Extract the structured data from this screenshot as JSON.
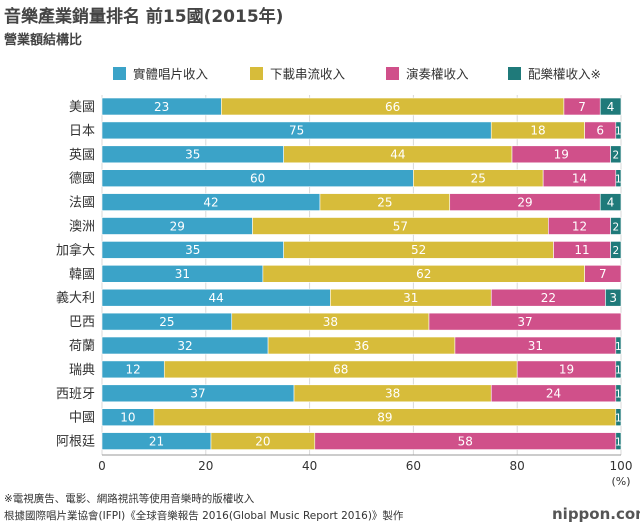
{
  "chart_data": {
    "type": "bar",
    "orientation": "horizontal",
    "stacked": true,
    "title": "音樂產業銷量排名 前15國(2015年)",
    "subtitle": "營業額結構比",
    "categories": [
      "美國",
      "日本",
      "英國",
      "德國",
      "法國",
      "澳洲",
      "加拿大",
      "韓國",
      "義大利",
      "巴西",
      "荷蘭",
      "瑞典",
      "西班牙",
      "中國",
      "阿根廷"
    ],
    "series": [
      {
        "name": "實體唱片收入",
        "color": "#3ba3c8",
        "values": [
          23,
          75,
          35,
          60,
          42,
          29,
          35,
          31,
          44,
          25,
          32,
          12,
          37,
          10,
          21
        ]
      },
      {
        "name": "下載串流收入",
        "color": "#d7bc3a",
        "values": [
          66,
          18,
          44,
          25,
          25,
          57,
          52,
          62,
          31,
          38,
          36,
          68,
          38,
          89,
          20
        ]
      },
      {
        "name": "演奏權收入",
        "color": "#d0508a",
        "values": [
          7,
          6,
          19,
          14,
          29,
          12,
          11,
          7,
          22,
          37,
          31,
          19,
          24,
          0,
          58
        ]
      },
      {
        "name": "配樂權收入※",
        "color": "#1f7a7a",
        "values": [
          4,
          1,
          2,
          1,
          4,
          2,
          2,
          0,
          3,
          0,
          1,
          1,
          1,
          1,
          1
        ]
      }
    ],
    "xlim": [
      0,
      100
    ],
    "xticks": [
      0,
      20,
      40,
      60,
      80,
      100
    ],
    "xlabel": "(%)",
    "legend_position": "top"
  },
  "footnotes": [
    "※電視廣告、電影、網路視訊等使用音樂時的版權收入",
    "根據國際唱片業協會(IFPI)《全球音樂報告 2016(Global Music Report 2016)》製作"
  ],
  "brand": "nippon.com"
}
